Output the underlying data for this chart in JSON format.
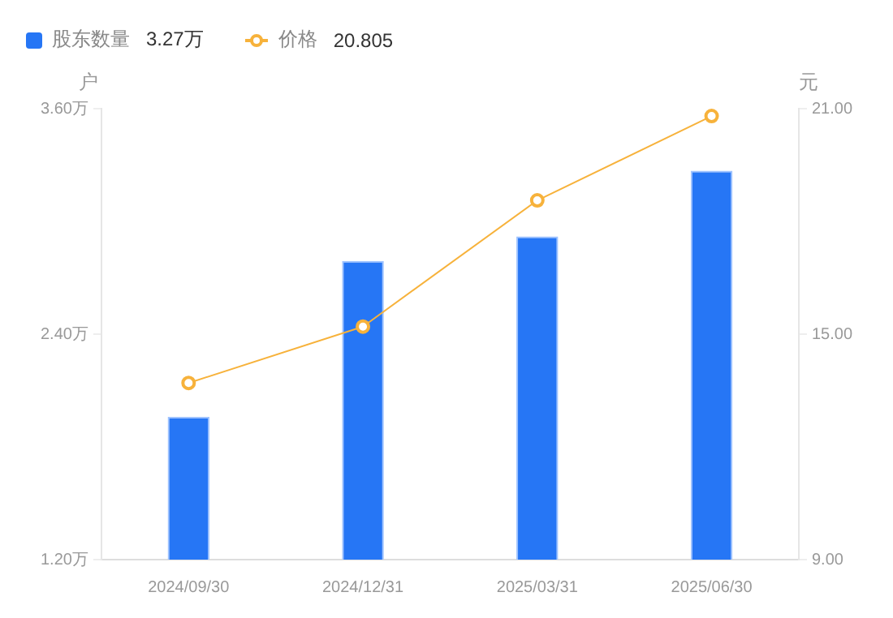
{
  "chart_data": {
    "type": "bar",
    "categories": [
      "2024/09/30",
      "2024/12/31",
      "2025/03/31",
      "2025/06/30"
    ],
    "series": [
      {
        "name": "股东数量",
        "color": "#2676f5",
        "values": [
          1.96,
          2.79,
          2.92,
          3.27
        ]
      },
      {
        "name": "价格",
        "type": "line",
        "axis": "y2",
        "color": "#f7b23b",
        "values": [
          13.7,
          15.2,
          18.56,
          20.805
        ],
        "marker": "circle"
      }
    ],
    "annotations": [
      "3.27万",
      "20.805"
    ],
    "ylabel": "户",
    "y2label": "元",
    "ylim": [
      1.2,
      3.6
    ],
    "yticks": [
      {
        "value": 1.2,
        "label": "1.20万"
      },
      {
        "value": 2.4,
        "label": "2.40万"
      },
      {
        "value": 3.6,
        "label": "3.60万"
      }
    ],
    "y2lim": [
      9,
      21
    ],
    "y2ticks": [
      {
        "value": 9,
        "label": "9.00"
      },
      {
        "value": 15,
        "label": "15.00"
      },
      {
        "value": 21,
        "label": "21.00"
      }
    ],
    "grid": false,
    "legend": "top left"
  }
}
